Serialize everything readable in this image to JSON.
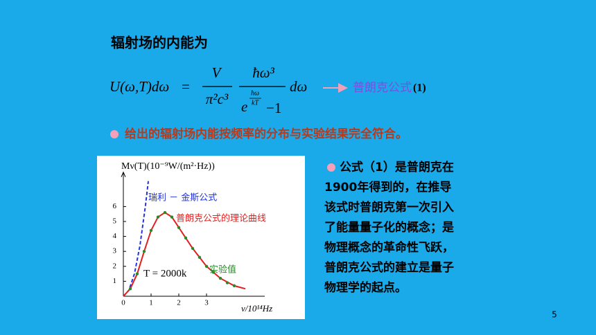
{
  "heading": "辐射场的内能为",
  "formula": {
    "lhs": "U(ω,T)dω",
    "eq": "=",
    "num1": "V",
    "den1": "π²c³",
    "num2": "ħω³",
    "den2_base": "e",
    "den2_exp_num": "ħω",
    "den2_exp_den": "kT",
    "den2_tail": "−1",
    "tail": "dω"
  },
  "formula_name": "普朗克公式",
  "formula_number": "(1)",
  "bullet": "给出的辐射场内能按频率的分布与实验结果完全符合。",
  "paragraph": [
    "公式（1）是普朗克在",
    "1900年得到的，在推导",
    "该式时普朗克第一次引入",
    "了能量量子化的概念；是",
    "物理概念的革命性飞跃，",
    "普朗克公式的建立是量子",
    "物理学的起点。"
  ],
  "figure": {
    "y_label": "Mν(T)(10⁻⁹W/(m²·Hz))",
    "x_label": "ν/10¹⁴Hz",
    "xticks": [
      0,
      1,
      2,
      3
    ],
    "yticks": [
      1,
      2,
      3,
      4,
      5,
      6
    ],
    "xlim": [
      0,
      4.6
    ],
    "ylim": [
      0,
      8.3
    ],
    "annotations": {
      "rayleigh": "瑞利 － 金斯公式",
      "planck": "普朗克公式的理论曲线",
      "temperature": "T = 2000k",
      "experiment": "实验值"
    },
    "rayleigh": {
      "color": "#2233dd",
      "x": [
        0,
        0.2,
        0.4,
        0.6,
        0.8,
        0.9
      ],
      "values": [
        0,
        0.4,
        1.5,
        3.4,
        6.1,
        7.7
      ]
    },
    "planck": {
      "color": "#e02020",
      "x": [
        0,
        0.25,
        0.5,
        0.75,
        1,
        1.25,
        1.5,
        1.75,
        2,
        2.5,
        3,
        3.5,
        4,
        4.4
      ],
      "values": [
        0,
        0.5,
        1.5,
        3,
        4.4,
        5.3,
        5.6,
        5.3,
        4.6,
        3.2,
        2,
        1.2,
        0.7,
        0.5
      ]
    },
    "experiment": {
      "color": "#2a8a2a",
      "x": [
        0.25,
        0.5,
        0.75,
        1,
        1.25,
        1.5,
        1.75,
        2,
        2.25,
        2.5,
        2.75,
        3,
        3.25,
        3.5,
        3.75,
        4
      ],
      "values": [
        0.5,
        1.5,
        3,
        4.4,
        5.3,
        5.6,
        5.3,
        4.6,
        3.9,
        3.2,
        2.6,
        2,
        1.6,
        1.2,
        0.9,
        0.7
      ]
    }
  },
  "page_number": "5"
}
